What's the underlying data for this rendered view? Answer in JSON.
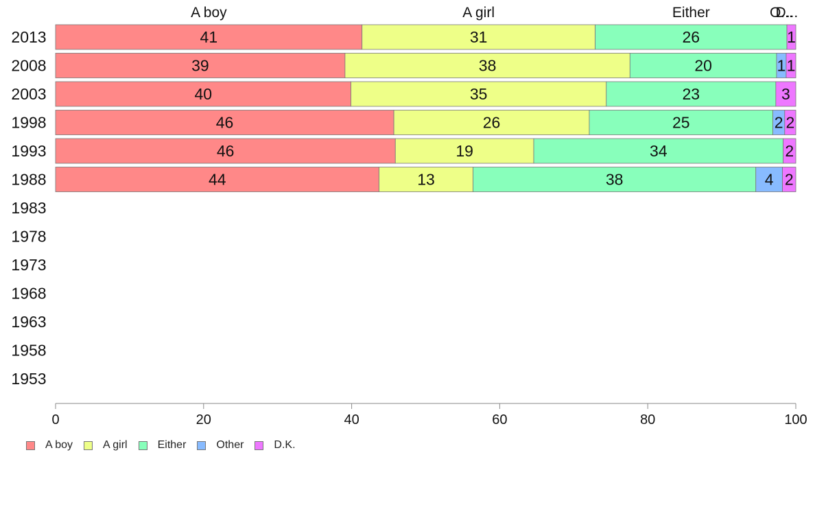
{
  "chart_data": {
    "type": "bar",
    "orientation": "horizontal",
    "stacked": true,
    "title": "",
    "xlabel": "",
    "ylabel": "",
    "xlim": [
      0,
      100
    ],
    "x_ticks": [
      0,
      20,
      40,
      60,
      80,
      100
    ],
    "grid": false,
    "legend_position": "bottom-left",
    "categories": [
      "2013",
      "2008",
      "2003",
      "1998",
      "1993",
      "1988",
      "1983",
      "1978",
      "1973",
      "1968",
      "1963",
      "1958",
      "1953"
    ],
    "top_labels": [
      "A boy",
      "A girl",
      "Either",
      "O...",
      "D..."
    ],
    "series": [
      {
        "name": "A boy",
        "color": "#FF8888",
        "values": [
          41.4,
          39.1,
          39.9,
          45.7,
          45.9,
          43.7,
          null,
          null,
          null,
          null,
          null,
          null,
          null
        ],
        "labels": [
          "41",
          "39",
          "40",
          "46",
          "46",
          "44",
          "",
          "",
          "",
          "",
          "",
          "",
          ""
        ]
      },
      {
        "name": "A girl",
        "color": "#EEFF88",
        "values": [
          31.5,
          38.5,
          34.5,
          26.4,
          18.7,
          12.7,
          null,
          null,
          null,
          null,
          null,
          null,
          null
        ],
        "labels": [
          "31",
          "38",
          "35",
          "26",
          "19",
          "13",
          "",
          "",
          "",
          "",
          "",
          "",
          ""
        ]
      },
      {
        "name": "Either",
        "color": "#88FFBB",
        "values": [
          25.9,
          19.8,
          22.9,
          24.8,
          33.7,
          38.2,
          null,
          null,
          null,
          null,
          null,
          null,
          null
        ],
        "labels": [
          "26",
          "20",
          "23",
          "25",
          "34",
          "38",
          "",
          "",
          "",
          "",
          "",
          "",
          ""
        ]
      },
      {
        "name": "Other",
        "color": "#88BBFF",
        "values": [
          0,
          1.3,
          0,
          1.6,
          0,
          3.6,
          null,
          null,
          null,
          null,
          null,
          null,
          null
        ],
        "labels": [
          "",
          "1",
          "",
          "2",
          "",
          "4",
          "",
          "",
          "",
          "",
          "",
          "",
          ""
        ]
      },
      {
        "name": "D.K.",
        "color": "#EE77FF",
        "values": [
          1.2,
          1.3,
          2.7,
          1.5,
          1.7,
          1.8,
          null,
          null,
          null,
          null,
          null,
          null,
          null
        ],
        "labels": [
          "1",
          "1",
          "3",
          "2",
          "2",
          "2",
          "",
          "",
          "",
          "",
          "",
          "",
          ""
        ]
      }
    ]
  }
}
